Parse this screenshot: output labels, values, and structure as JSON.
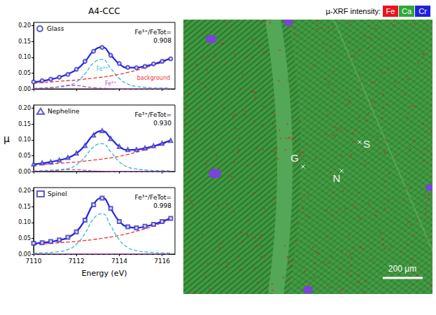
{
  "title": "A4-CCC",
  "chart_data": [
    {
      "type": "line",
      "x": [
        7110,
        7110.4,
        7110.8,
        7111.2,
        7111.6,
        7112,
        7112.4,
        7112.8,
        7113.2,
        7113.6,
        7114,
        7114.4,
        7114.8,
        7115.2,
        7115.6,
        7116,
        7116.4
      ],
      "xlim": [
        7110,
        7116.6
      ],
      "xticks": [
        7110,
        7112,
        7114,
        7116
      ],
      "ylim": [
        0,
        0.21
      ],
      "yticks": [
        {
          "value": 0,
          "label": "0.00"
        },
        0.05,
        {
          "value": 0.1,
          "label": "0.10"
        },
        0.15,
        {
          "value": 0.2,
          "label": "0.20"
        }
      ],
      "grid": false,
      "tick_labels": "y",
      "annotation": {
        "text": "Fe³⁺/FeTot=",
        "value": 0.908,
        "label": "0.908"
      },
      "series": [
        {
          "type": "scatter",
          "name": "Glass",
          "marker": "circle",
          "color": "#3333bb",
          "values": [
            0.022,
            0.026,
            0.031,
            0.037,
            0.046,
            0.062,
            0.087,
            0.119,
            0.131,
            0.106,
            0.08,
            0.068,
            0.067,
            0.071,
            0.079,
            0.087,
            0.095
          ]
        },
        {
          "type": "line",
          "line_style": "solid",
          "color": "#2222ee",
          "values": [
            0.021,
            0.025,
            0.03,
            0.037,
            0.047,
            0.061,
            0.086,
            0.12,
            0.132,
            0.107,
            0.079,
            0.067,
            0.067,
            0.072,
            0.078,
            0.087,
            0.096
          ]
        },
        {
          "type": "line",
          "name": "Fe³⁺",
          "line_style": "dashed",
          "color": "#33bbcc",
          "values": [
            0.002,
            0.003,
            0.004,
            0.006,
            0.01,
            0.022,
            0.048,
            0.082,
            0.093,
            0.065,
            0.033,
            0.015,
            0.008,
            0.005,
            0.003,
            0.003,
            0.002
          ]
        },
        {
          "type": "line",
          "name": "Fe²⁺",
          "line_style": "dashed",
          "color": "#bb44cc",
          "values": [
            0.001,
            0.002,
            0.004,
            0.007,
            0.011,
            0.011,
            0.007,
            0.004,
            0.002,
            0.001,
            0,
            0,
            0,
            0,
            0,
            0,
            0
          ]
        },
        {
          "type": "line",
          "name": "background",
          "line_style": "dashed",
          "color": "#ee3333",
          "values": [
            0.018,
            0.02,
            0.022,
            0.024,
            0.026,
            0.028,
            0.031,
            0.034,
            0.037,
            0.041,
            0.046,
            0.052,
            0.059,
            0.067,
            0.075,
            0.084,
            0.094
          ]
        }
      ]
    },
    {
      "type": "line",
      "x": [
        7110,
        7110.4,
        7110.8,
        7111.2,
        7111.6,
        7112,
        7112.4,
        7112.8,
        7113.2,
        7113.6,
        7114,
        7114.4,
        7114.8,
        7115.2,
        7115.6,
        7116,
        7116.4
      ],
      "xlim": [
        7110,
        7116.6
      ],
      "xticks": [
        7110,
        7112,
        7114,
        7116
      ],
      "ylim": [
        0,
        0.21
      ],
      "yticks": [
        {
          "value": 0,
          "label": "0.00"
        },
        0.05,
        {
          "value": 0.1,
          "label": "0.10"
        },
        0.15,
        {
          "value": 0.2,
          "label": "0.20"
        }
      ],
      "grid": false,
      "tick_labels": "y",
      "ylabel": "μ",
      "annotation": {
        "text": "Fe³⁺/FeTot=",
        "value": 0.93,
        "label": "0.930"
      },
      "series": [
        {
          "type": "scatter",
          "name": "Nepheline",
          "marker": "triangle",
          "color": "#3333bb",
          "values": [
            0.024,
            0.027,
            0.03,
            0.036,
            0.044,
            0.058,
            0.082,
            0.115,
            0.129,
            0.104,
            0.079,
            0.069,
            0.069,
            0.074,
            0.081,
            0.089,
            0.098
          ]
        },
        {
          "type": "line",
          "line_style": "solid",
          "color": "#2222ee",
          "values": [
            0.023,
            0.026,
            0.03,
            0.036,
            0.043,
            0.057,
            0.083,
            0.116,
            0.128,
            0.105,
            0.079,
            0.068,
            0.069,
            0.074,
            0.08,
            0.089,
            0.098
          ]
        },
        {
          "type": "line",
          "line_style": "dashed",
          "color": "#33bbcc",
          "values": [
            0.002,
            0.003,
            0.004,
            0.006,
            0.009,
            0.021,
            0.046,
            0.078,
            0.088,
            0.062,
            0.031,
            0.014,
            0.008,
            0.005,
            0.003,
            0.003,
            0.002
          ]
        },
        {
          "type": "line",
          "line_style": "dashed",
          "color": "#bb44cc",
          "values": [
            0.001,
            0.001,
            0.002,
            0.004,
            0.006,
            0.006,
            0.004,
            0.002,
            0.001,
            0,
            0,
            0,
            0,
            0,
            0,
            0,
            0
          ]
        },
        {
          "type": "line",
          "line_style": "dashed",
          "color": "#ee3333",
          "values": [
            0.02,
            0.022,
            0.024,
            0.026,
            0.028,
            0.03,
            0.033,
            0.036,
            0.039,
            0.043,
            0.048,
            0.054,
            0.061,
            0.069,
            0.077,
            0.086,
            0.096
          ]
        }
      ]
    },
    {
      "type": "line",
      "x": [
        7110,
        7110.4,
        7110.8,
        7111.2,
        7111.6,
        7112,
        7112.4,
        7112.8,
        7113.2,
        7113.6,
        7114,
        7114.4,
        7114.8,
        7115.2,
        7115.6,
        7116,
        7116.4
      ],
      "xlim": [
        7110,
        7116.6
      ],
      "xticks": [
        7110,
        7112,
        7114,
        7116
      ],
      "ylim": [
        0,
        0.21
      ],
      "yticks": [
        {
          "value": 0,
          "label": "0.00"
        },
        0.05,
        {
          "value": 0.1,
          "label": "0.10"
        },
        0.15,
        {
          "value": 0.2,
          "label": "0.20"
        }
      ],
      "grid": false,
      "xlabel": "Energy (eV)",
      "annotation": {
        "text": "Fe³⁺/FeTot=",
        "value": 0.998,
        "label": "0.998"
      },
      "series": [
        {
          "type": "scatter",
          "name": "Spinel",
          "marker": "square",
          "color": "#3333bb",
          "values": [
            0.034,
            0.036,
            0.04,
            0.045,
            0.053,
            0.07,
            0.107,
            0.156,
            0.177,
            0.144,
            0.103,
            0.086,
            0.083,
            0.088,
            0.094,
            0.103,
            0.113
          ]
        },
        {
          "type": "line",
          "line_style": "solid",
          "color": "#2222ee",
          "values": [
            0.033,
            0.036,
            0.039,
            0.044,
            0.052,
            0.071,
            0.108,
            0.158,
            0.178,
            0.143,
            0.104,
            0.086,
            0.083,
            0.087,
            0.094,
            0.103,
            0.113
          ]
        },
        {
          "type": "line",
          "line_style": "dashed",
          "color": "#33bbcc",
          "values": [
            0.003,
            0.004,
            0.005,
            0.008,
            0.014,
            0.031,
            0.065,
            0.112,
            0.128,
            0.089,
            0.045,
            0.021,
            0.011,
            0.007,
            0.005,
            0.004,
            0.003
          ]
        },
        {
          "type": "line",
          "line_style": "dashed",
          "color": "#bb44cc",
          "values": [
            0,
            0,
            0,
            0,
            0,
            0,
            0,
            0,
            0,
            0,
            0,
            0,
            0,
            0,
            0,
            0,
            0
          ]
        },
        {
          "type": "line",
          "line_style": "dashed",
          "color": "#ee3333",
          "values": [
            0.03,
            0.032,
            0.034,
            0.036,
            0.038,
            0.04,
            0.043,
            0.046,
            0.05,
            0.054,
            0.059,
            0.065,
            0.072,
            0.08,
            0.089,
            0.099,
            0.11
          ]
        }
      ]
    }
  ],
  "map": {
    "title": "µ-XRF intensity:",
    "channels": [
      {
        "name": "Fe",
        "color": "#e8141e"
      },
      {
        "name": "Ca",
        "color": "#2fa83a"
      },
      {
        "name": "Cr",
        "color": "#2020e0"
      }
    ],
    "points": [
      "G",
      "N",
      "S"
    ],
    "scale_bar": "200 µm"
  }
}
